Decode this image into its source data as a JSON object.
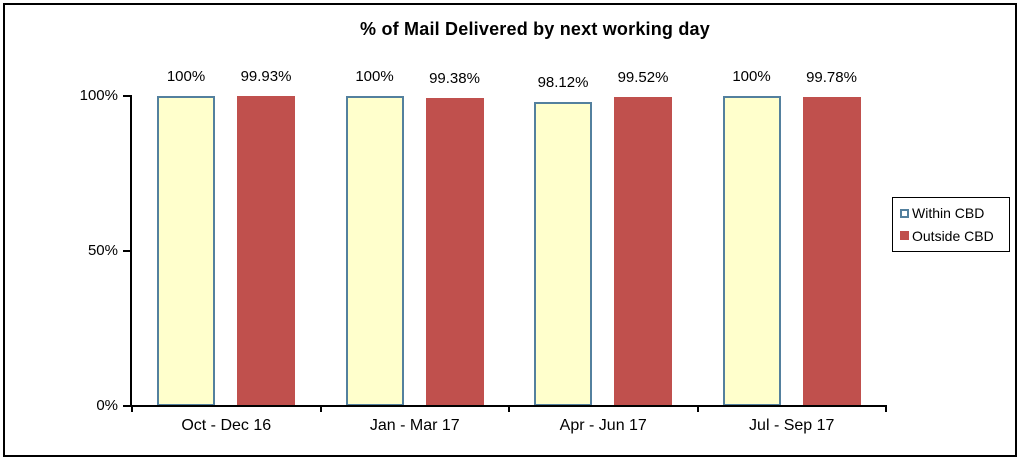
{
  "chart_data": {
    "type": "bar",
    "title": "% of Mail Delivered by next working day",
    "categories": [
      "Oct - Dec 16",
      "Jan - Mar 17",
      "Apr - Jun 17",
      "Jul - Sep 17"
    ],
    "series": [
      {
        "name": "Within CBD",
        "values": [
          100,
          100,
          98.12,
          100
        ],
        "data_labels": [
          "100%",
          "100%",
          "98.12%",
          "100%"
        ],
        "fill": "#FFFFCC",
        "border": "#53809E"
      },
      {
        "name": "Outside CBD",
        "values": [
          99.93,
          99.38,
          99.52,
          99.78
        ],
        "data_labels": [
          "99.93%",
          "99.38%",
          "99.52%",
          "99.78%"
        ],
        "fill": "#C0504D",
        "border": ""
      }
    ],
    "y_axis": {
      "ticks": [
        "0%",
        "50%",
        "100%"
      ],
      "tick_values": [
        0,
        50,
        100
      ],
      "min": 0,
      "max": 100
    },
    "legend": {
      "position": "right",
      "entries": [
        "Within CBD",
        "Outside CBD"
      ]
    },
    "grid": false,
    "colors": {
      "axis": "#000000",
      "text": "#000000",
      "background": "#FFFFFF",
      "frame_border": "#000000"
    }
  }
}
